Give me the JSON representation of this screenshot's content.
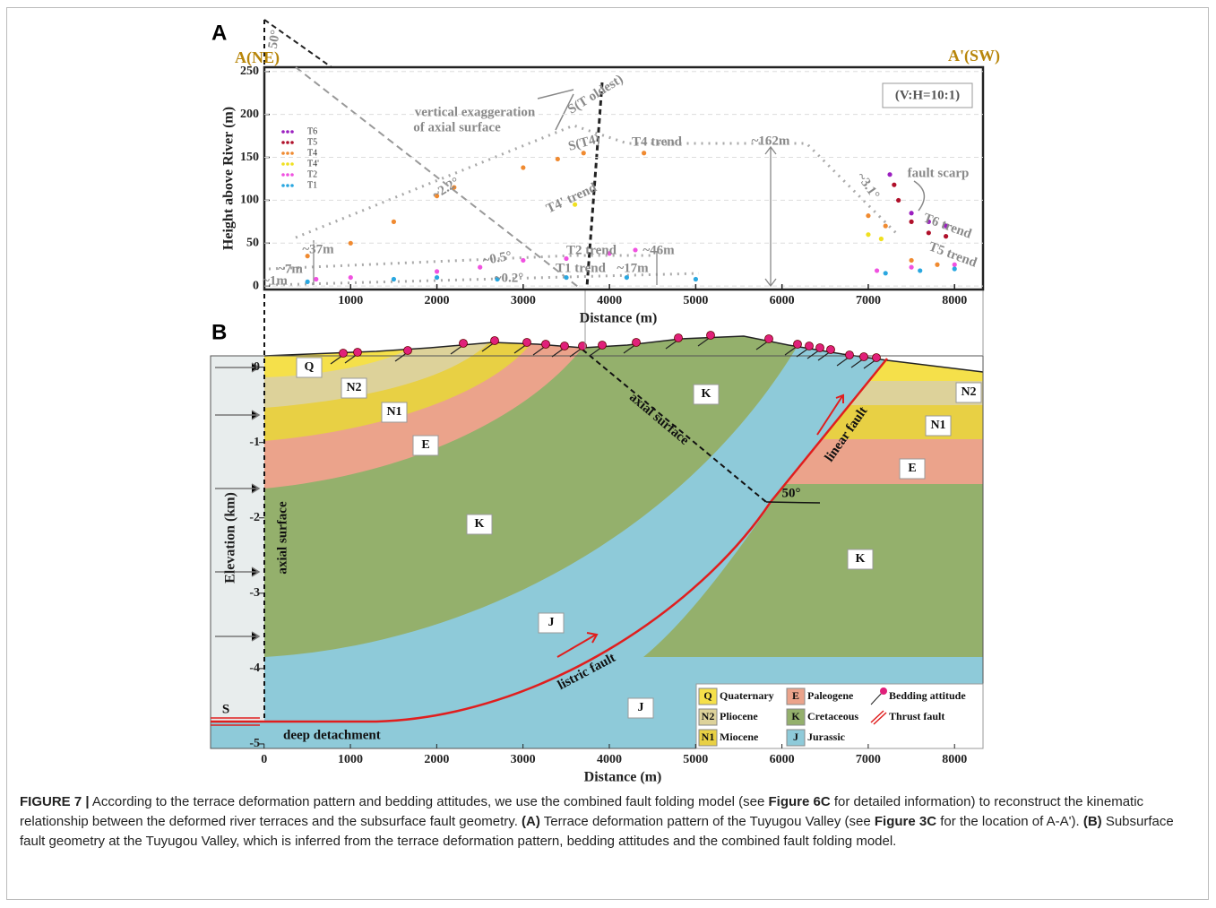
{
  "panel_a": {
    "label": "A",
    "left_label": "A(NE)",
    "right_label": "A'(SW)",
    "xlabel": "Distance (m)",
    "ylabel": "Height above River (m)",
    "xlim": [
      0,
      8330
    ],
    "ylim": [
      -4,
      255
    ],
    "xticks": [
      1000,
      2000,
      3000,
      4000,
      5000,
      6000,
      7000,
      8000
    ],
    "yticks": [
      0,
      50,
      100,
      150,
      200,
      250
    ],
    "grid": true,
    "series": [
      {
        "name": "T6",
        "color": "#9b1fc0",
        "x": [
          7250,
          7500,
          7700,
          7900
        ],
        "y": [
          130,
          85,
          75,
          70
        ]
      },
      {
        "name": "T5",
        "color": "#b0102a",
        "x": [
          7300,
          7350,
          7500,
          7700,
          7900
        ],
        "y": [
          118,
          100,
          75,
          62,
          58
        ]
      },
      {
        "name": "T4",
        "color": "#f08a30",
        "x": [
          500,
          1000,
          1500,
          2000,
          2200,
          3000,
          3400,
          3700,
          4400,
          7000,
          7200,
          7500,
          7800
        ],
        "y": [
          35,
          50,
          75,
          105,
          115,
          138,
          148,
          155,
          155,
          82,
          70,
          30,
          25
        ]
      },
      {
        "name": "T4'",
        "color": "#f0e020",
        "x": [
          3600,
          7000,
          7150
        ],
        "y": [
          95,
          60,
          55
        ]
      },
      {
        "name": "T2",
        "color": "#f052e0",
        "x": [
          600,
          1000,
          2000,
          2500,
          3000,
          3500,
          4000,
          4300,
          7100,
          7500,
          8000
        ],
        "y": [
          8,
          10,
          17,
          22,
          30,
          32,
          38,
          42,
          18,
          22,
          25
        ]
      },
      {
        "name": "T1",
        "color": "#2aa7e0",
        "x": [
          500,
          1500,
          2000,
          2700,
          3500,
          4200,
          5000,
          7200,
          7600,
          8000
        ],
        "y": [
          5,
          8,
          10,
          8,
          10,
          10,
          8,
          15,
          18,
          20
        ]
      }
    ],
    "annotations": [
      "(V:H=10:1)",
      "vertical exaggeration",
      "of axial surface",
      "S(T oldest)",
      "S(T4)",
      "T4 trend",
      "~162m",
      "fault scarp",
      "~3.1°",
      "T6 trend",
      "T5 trend",
      "~2.2°",
      "T4' trend",
      "T2 trend",
      "~46m",
      "~0.5°",
      "~0.2°",
      "T1 trend",
      "~17m",
      "~37m",
      "~7m",
      "~1m",
      "50°"
    ]
  },
  "panel_b": {
    "label": "B",
    "xlabel": "Distance (m)",
    "ylabel": "Elevation (km)",
    "xlim": [
      -620,
      8330
    ],
    "ylim": [
      -5.06,
      0.15
    ],
    "xticks": [
      0,
      1000,
      2000,
      3000,
      4000,
      5000,
      6000,
      7000,
      8000
    ],
    "yticks": [
      0,
      -1,
      -2,
      -3,
      -4,
      -5
    ],
    "units": [
      {
        "code": "Q",
        "name": "Quaternary",
        "color": "#f5e04a"
      },
      {
        "code": "N2",
        "name": "Pliocene",
        "color": "#ddd29a"
      },
      {
        "code": "N1",
        "name": "Miocene",
        "color": "#e8d044"
      },
      {
        "code": "E",
        "name": "Paleogene",
        "color": "#eba38b"
      },
      {
        "code": "K",
        "name": "Cretaceous",
        "color": "#94b06c"
      },
      {
        "code": "J",
        "name": "Jurassic",
        "color": "#8ecad9"
      }
    ],
    "unit_labels": [
      "Q",
      "N2",
      "N1",
      "E",
      "K",
      "J",
      "K",
      "N2",
      "N1",
      "E",
      "K",
      "J"
    ],
    "symbols": [
      "Bedding attitude",
      "Thrust fault"
    ],
    "annotations": [
      "axial surface",
      "axial surface",
      "linear fault",
      "listric fault",
      "deep detachment",
      "S",
      "50°"
    ]
  },
  "caption": [
    {
      "text": "FIGURE 7 |",
      "bold": true
    },
    {
      "text": " According to the terrace deformation pattern and bedding attitudes, we use the combined fault folding model (see "
    },
    {
      "text": "Figure 6C",
      "bold": true
    },
    {
      "text": " for detailed information) to reconstruct the kinematic relationship between the deformed river terraces and the subsurface fault geometry. "
    },
    {
      "text": "(A)",
      "bold": true
    },
    {
      "text": " Terrace deformation pattern of the Tuyugou Valley (see "
    },
    {
      "text": "Figure 3C",
      "bold": true
    },
    {
      "text": " for the location of A-A'). "
    },
    {
      "text": "(B)",
      "bold": true
    },
    {
      "text": " Subsurface fault geometry at the Tuyugou Valley, which is inferred from the terrace deformation pattern, bedding attitudes and the combined fault folding model."
    }
  ]
}
